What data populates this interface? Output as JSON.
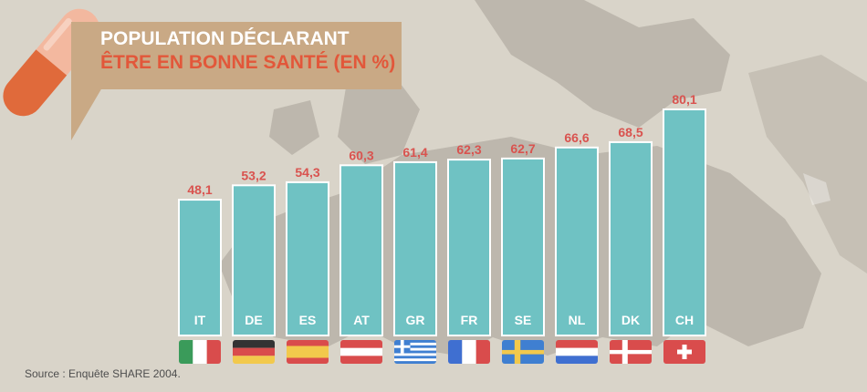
{
  "title": {
    "line1": "POPULATION DÉCLARANT",
    "line2": "ÊTRE EN BONNE SANTÉ (EN %)"
  },
  "source": "Source : Enquête SHARE 2004.",
  "colors": {
    "bar": "#6fc2c3",
    "value_label": "#d9534f",
    "title_box": "#c9a985",
    "title_accent": "#e2573a"
  },
  "chart_data": {
    "type": "bar",
    "title": "POPULATION DÉCLARANT ÊTRE EN BONNE SANTÉ (EN %)",
    "xlabel": "",
    "ylabel": "",
    "categories": [
      "IT",
      "DE",
      "ES",
      "AT",
      "GR",
      "FR",
      "SE",
      "NL",
      "DK",
      "CH"
    ],
    "values": [
      48.1,
      53.2,
      54.3,
      60.3,
      61.4,
      62.3,
      62.7,
      66.6,
      68.5,
      80.1
    ],
    "value_labels": [
      "48,1",
      "53,2",
      "54,3",
      "60,3",
      "61,4",
      "62,3",
      "62,7",
      "66,6",
      "68,5",
      "80,1"
    ],
    "ylim": [
      0,
      80.1
    ],
    "grid": false,
    "legend": "none",
    "flags": [
      "italy-flag-icon",
      "germany-flag-icon",
      "spain-flag-icon",
      "austria-flag-icon",
      "greece-flag-icon",
      "france-flag-icon",
      "sweden-flag-icon",
      "netherlands-flag-icon",
      "denmark-flag-icon",
      "switzerland-flag-icon"
    ]
  }
}
